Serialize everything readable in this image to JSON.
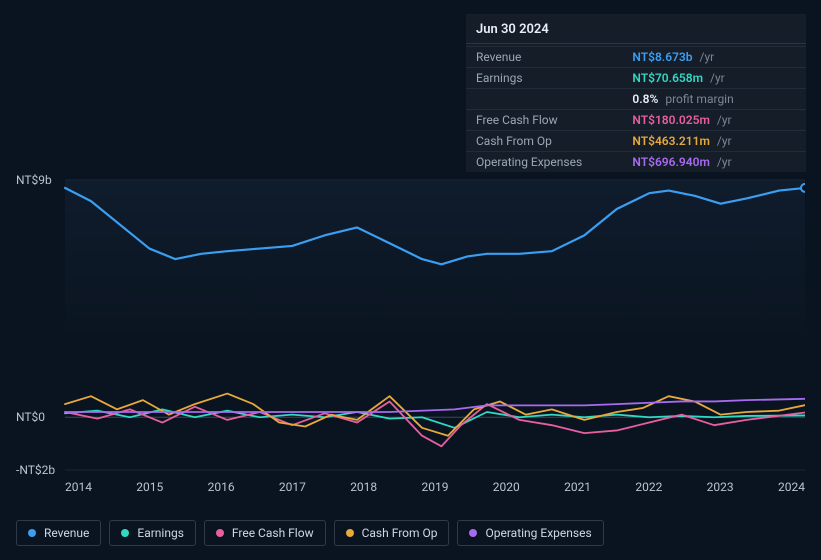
{
  "tooltip": {
    "date": "Jun 30 2024",
    "rows": [
      {
        "label": "Revenue",
        "value": "NT$8.673b",
        "color": "#3a9ff2",
        "unit": "/yr"
      },
      {
        "label": "Earnings",
        "value": "NT$70.658m",
        "color": "#2fd9c4",
        "unit": "/yr"
      },
      {
        "label": "",
        "value": "0.8%",
        "color": "#e8eef5",
        "unit": "profit margin"
      },
      {
        "label": "Free Cash Flow",
        "value": "NT$180.025m",
        "color": "#e85fa0",
        "unit": "/yr"
      },
      {
        "label": "Cash From Op",
        "value": "NT$463.211m",
        "color": "#e7a93b",
        "unit": "/yr"
      },
      {
        "label": "Operating Expenses",
        "value": "NT$696.940m",
        "color": "#a76bf0",
        "unit": "/yr"
      }
    ]
  },
  "chart": {
    "type": "line",
    "ylim": [
      -2,
      9
    ],
    "yticks": [
      {
        "v": 9,
        "label": "NT$9b"
      },
      {
        "v": 0,
        "label": "NT$0"
      },
      {
        "v": -2,
        "label": "-NT$2b"
      }
    ],
    "xlim": [
      2013.5,
      2024.9
    ],
    "xticks": [
      2014,
      2015,
      2016,
      2017,
      2018,
      2019,
      2020,
      2021,
      2022,
      2023,
      2024
    ],
    "grid_color": "#1b2633",
    "baseline_color": "#3a4657",
    "series": [
      {
        "name": "Revenue",
        "color": "#3a9ff2",
        "width": 2.2,
        "data": [
          [
            2013.5,
            8.7
          ],
          [
            2013.9,
            8.2
          ],
          [
            2014.3,
            7.4
          ],
          [
            2014.8,
            6.4
          ],
          [
            2015.2,
            6.0
          ],
          [
            2015.6,
            6.2
          ],
          [
            2016.0,
            6.3
          ],
          [
            2016.5,
            6.4
          ],
          [
            2017.0,
            6.5
          ],
          [
            2017.5,
            6.9
          ],
          [
            2018.0,
            7.2
          ],
          [
            2018.5,
            6.6
          ],
          [
            2019.0,
            6.0
          ],
          [
            2019.3,
            5.8
          ],
          [
            2019.7,
            6.1
          ],
          [
            2020.0,
            6.2
          ],
          [
            2020.5,
            6.2
          ],
          [
            2021.0,
            6.3
          ],
          [
            2021.5,
            6.9
          ],
          [
            2022.0,
            7.9
          ],
          [
            2022.5,
            8.5
          ],
          [
            2022.8,
            8.6
          ],
          [
            2023.2,
            8.4
          ],
          [
            2023.6,
            8.1
          ],
          [
            2024.0,
            8.3
          ],
          [
            2024.5,
            8.6
          ],
          [
            2024.9,
            8.7
          ]
        ]
      },
      {
        "name": "Earnings",
        "color": "#2fd9c4",
        "width": 1.8,
        "data": [
          [
            2013.5,
            0.15
          ],
          [
            2014.0,
            0.25
          ],
          [
            2014.5,
            0.0
          ],
          [
            2015.0,
            0.3
          ],
          [
            2015.5,
            0.0
          ],
          [
            2016.0,
            0.25
          ],
          [
            2016.5,
            0.0
          ],
          [
            2017.0,
            0.1
          ],
          [
            2017.5,
            0.0
          ],
          [
            2018.0,
            0.2
          ],
          [
            2018.5,
            -0.05
          ],
          [
            2019.0,
            0.0
          ],
          [
            2019.5,
            -0.4
          ],
          [
            2020.0,
            0.2
          ],
          [
            2020.5,
            0.0
          ],
          [
            2021.0,
            0.1
          ],
          [
            2021.5,
            0.0
          ],
          [
            2022.0,
            0.1
          ],
          [
            2022.5,
            0.0
          ],
          [
            2023.0,
            0.05
          ],
          [
            2023.5,
            0.0
          ],
          [
            2024.0,
            0.05
          ],
          [
            2024.9,
            0.07
          ]
        ]
      },
      {
        "name": "Free Cash Flow",
        "color": "#e85fa0",
        "width": 1.8,
        "data": [
          [
            2013.5,
            0.2
          ],
          [
            2014.0,
            -0.05
          ],
          [
            2014.5,
            0.3
          ],
          [
            2015.0,
            -0.2
          ],
          [
            2015.5,
            0.4
          ],
          [
            2016.0,
            -0.1
          ],
          [
            2016.5,
            0.2
          ],
          [
            2017.0,
            -0.3
          ],
          [
            2017.5,
            0.15
          ],
          [
            2018.0,
            -0.2
          ],
          [
            2018.5,
            0.6
          ],
          [
            2019.0,
            -0.7
          ],
          [
            2019.3,
            -1.1
          ],
          [
            2019.6,
            -0.3
          ],
          [
            2020.0,
            0.5
          ],
          [
            2020.5,
            -0.1
          ],
          [
            2021.0,
            -0.3
          ],
          [
            2021.5,
            -0.6
          ],
          [
            2022.0,
            -0.5
          ],
          [
            2022.5,
            -0.2
          ],
          [
            2023.0,
            0.1
          ],
          [
            2023.5,
            -0.3
          ],
          [
            2024.0,
            -0.1
          ],
          [
            2024.9,
            0.18
          ]
        ]
      },
      {
        "name": "Cash From Op",
        "color": "#e7a93b",
        "width": 1.8,
        "data": [
          [
            2013.5,
            0.5
          ],
          [
            2013.9,
            0.8
          ],
          [
            2014.3,
            0.3
          ],
          [
            2014.7,
            0.65
          ],
          [
            2015.1,
            0.1
          ],
          [
            2015.5,
            0.5
          ],
          [
            2016.0,
            0.9
          ],
          [
            2016.4,
            0.5
          ],
          [
            2016.8,
            -0.2
          ],
          [
            2017.2,
            -0.35
          ],
          [
            2017.6,
            0.1
          ],
          [
            2018.0,
            -0.1
          ],
          [
            2018.5,
            0.8
          ],
          [
            2019.0,
            -0.4
          ],
          [
            2019.4,
            -0.7
          ],
          [
            2019.8,
            0.3
          ],
          [
            2020.2,
            0.6
          ],
          [
            2020.6,
            0.1
          ],
          [
            2021.0,
            0.3
          ],
          [
            2021.5,
            -0.1
          ],
          [
            2022.0,
            0.2
          ],
          [
            2022.4,
            0.35
          ],
          [
            2022.8,
            0.8
          ],
          [
            2023.2,
            0.6
          ],
          [
            2023.6,
            0.1
          ],
          [
            2024.0,
            0.2
          ],
          [
            2024.5,
            0.25
          ],
          [
            2024.9,
            0.46
          ]
        ]
      },
      {
        "name": "Operating Expenses",
        "color": "#a76bf0",
        "width": 1.8,
        "data": [
          [
            2013.5,
            0.2
          ],
          [
            2014.5,
            0.2
          ],
          [
            2015.5,
            0.2
          ],
          [
            2016.5,
            0.2
          ],
          [
            2017.5,
            0.2
          ],
          [
            2018.5,
            0.2
          ],
          [
            2019.5,
            0.3
          ],
          [
            2020.0,
            0.45
          ],
          [
            2020.5,
            0.45
          ],
          [
            2021.0,
            0.45
          ],
          [
            2021.5,
            0.45
          ],
          [
            2022.0,
            0.5
          ],
          [
            2022.5,
            0.55
          ],
          [
            2023.0,
            0.6
          ],
          [
            2023.5,
            0.6
          ],
          [
            2024.0,
            0.65
          ],
          [
            2024.9,
            0.7
          ]
        ]
      }
    ],
    "marker": {
      "x": 2024.9,
      "color": "#3a9ff2"
    }
  },
  "legend": [
    {
      "label": "Revenue",
      "color": "#3a9ff2"
    },
    {
      "label": "Earnings",
      "color": "#2fd9c4"
    },
    {
      "label": "Free Cash Flow",
      "color": "#e85fa0"
    },
    {
      "label": "Cash From Op",
      "color": "#e7a93b"
    },
    {
      "label": "Operating Expenses",
      "color": "#a76bf0"
    }
  ]
}
